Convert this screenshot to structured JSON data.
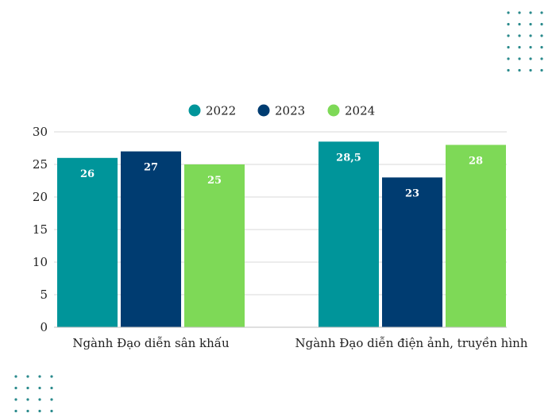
{
  "colors": {
    "accent_teal": "#00959a",
    "accent_navy": "#003c71",
    "accent_green": "#7ed957",
    "dot_pattern": "#2a8a8c",
    "grid": "#d9d9d9"
  },
  "chart_data": {
    "type": "bar",
    "title": "",
    "xlabel": "",
    "ylabel": "",
    "categories": [
      "Ngành Đạo diễn sân khấu",
      "Ngành Đạo diễn điện ảnh, truyền hình"
    ],
    "series": [
      {
        "name": "2022",
        "color": "#00959a",
        "values": [
          26,
          28.5
        ],
        "labels": [
          "26",
          "28,5"
        ]
      },
      {
        "name": "2023",
        "color": "#003c71",
        "values": [
          27,
          23
        ],
        "labels": [
          "27",
          "23"
        ]
      },
      {
        "name": "2024",
        "color": "#7ed957",
        "values": [
          25,
          28
        ],
        "labels": [
          "25",
          "28"
        ]
      }
    ],
    "ylim": [
      0,
      30
    ],
    "yticks": [
      "0",
      "5",
      "10",
      "15",
      "20",
      "25",
      "30"
    ],
    "grid": true,
    "legend_position": "top-center"
  }
}
